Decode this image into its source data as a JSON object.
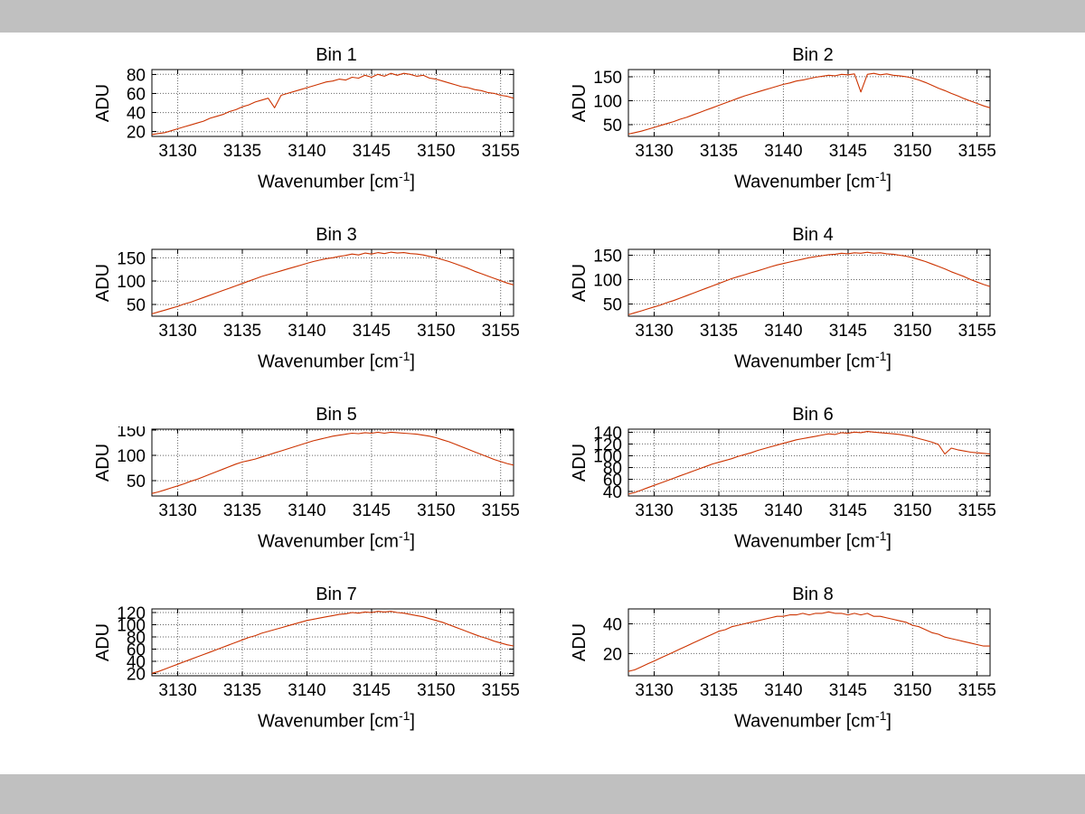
{
  "figure": {
    "background": "#ffffff",
    "chrome_color": "#c0c0c0",
    "line_color": "#cc3300",
    "grid_color": "#666666",
    "axis_color": "#000000"
  },
  "chart_data": [
    {
      "type": "line",
      "title": "Bin 1",
      "ylabel": "ADU",
      "xlabel": {
        "pre": "Wavenumber [cm",
        "sup": "-1",
        "post": "]"
      },
      "grid": true,
      "xlim": [
        3128,
        3156
      ],
      "ylim": [
        15,
        85
      ],
      "xticks": [
        3130,
        3135,
        3140,
        3145,
        3150,
        3155
      ],
      "yticks": [
        20,
        40,
        60,
        80
      ],
      "x_start": 3128,
      "x_step": 0.5,
      "values": [
        17,
        18,
        19,
        21,
        23,
        25,
        27,
        29,
        31,
        34,
        36,
        38,
        41,
        43,
        46,
        48,
        51,
        53,
        55,
        45,
        58,
        60,
        62,
        64,
        66,
        68,
        70,
        72,
        73,
        75,
        74,
        77,
        76,
        79,
        77,
        80,
        78,
        81,
        79,
        81,
        80,
        78,
        79,
        76,
        75,
        73,
        71,
        69,
        67,
        66,
        64,
        63,
        61,
        60,
        58,
        57,
        55
      ]
    },
    {
      "type": "line",
      "title": "Bin 2",
      "ylabel": "ADU",
      "xlabel": {
        "pre": "Wavenumber [cm",
        "sup": "-1",
        "post": "]"
      },
      "grid": true,
      "xlim": [
        3128,
        3156
      ],
      "ylim": [
        25,
        165
      ],
      "xticks": [
        3130,
        3135,
        3140,
        3145,
        3150,
        3155
      ],
      "yticks": [
        50,
        100,
        150
      ],
      "x_start": 3128,
      "x_step": 0.5,
      "values": [
        30,
        33,
        36,
        40,
        44,
        48,
        52,
        56,
        61,
        65,
        70,
        75,
        80,
        85,
        90,
        95,
        100,
        105,
        110,
        114,
        118,
        122,
        126,
        130,
        134,
        137,
        141,
        143,
        146,
        149,
        151,
        153,
        152,
        155,
        154,
        156,
        118,
        155,
        157,
        154,
        156,
        153,
        152,
        150,
        147,
        143,
        138,
        132,
        126,
        121,
        115,
        110,
        104,
        99,
        94,
        89,
        85
      ]
    },
    {
      "type": "line",
      "title": "Bin 3",
      "ylabel": "ADU",
      "xlabel": {
        "pre": "Wavenumber [cm",
        "sup": "-1",
        "post": "]"
      },
      "grid": true,
      "xlim": [
        3128,
        3156
      ],
      "ylim": [
        25,
        168
      ],
      "xticks": [
        3130,
        3135,
        3140,
        3145,
        3150,
        3155
      ],
      "yticks": [
        50,
        100,
        150
      ],
      "x_start": 3128,
      "x_step": 0.5,
      "values": [
        30,
        34,
        38,
        42,
        46,
        51,
        55,
        60,
        65,
        70,
        75,
        80,
        85,
        90,
        95,
        100,
        105,
        110,
        114,
        118,
        122,
        126,
        130,
        134,
        138,
        142,
        145,
        148,
        150,
        153,
        155,
        158,
        156,
        160,
        158,
        161,
        159,
        162,
        160,
        161,
        159,
        158,
        156,
        153,
        150,
        146,
        142,
        137,
        132,
        127,
        121,
        116,
        111,
        106,
        101,
        96,
        92
      ]
    },
    {
      "type": "line",
      "title": "Bin 4",
      "ylabel": "ADU",
      "xlabel": {
        "pre": "Wavenumber [cm",
        "sup": "-1",
        "post": "]"
      },
      "grid": true,
      "xlim": [
        3128,
        3156
      ],
      "ylim": [
        25,
        162
      ],
      "xticks": [
        3130,
        3135,
        3140,
        3145,
        3150,
        3155
      ],
      "yticks": [
        50,
        100,
        150
      ],
      "x_start": 3128,
      "x_step": 0.5,
      "values": [
        28,
        32,
        36,
        40,
        44,
        48,
        53,
        57,
        62,
        67,
        72,
        77,
        82,
        87,
        92,
        97,
        102,
        106,
        110,
        114,
        118,
        122,
        126,
        130,
        133,
        136,
        139,
        142,
        145,
        147,
        149,
        151,
        152,
        154,
        153,
        155,
        154,
        156,
        154,
        155,
        153,
        152,
        150,
        148,
        145,
        141,
        137,
        132,
        127,
        122,
        116,
        111,
        106,
        100,
        95,
        90,
        86
      ]
    },
    {
      "type": "line",
      "title": "Bin 5",
      "ylabel": "ADU",
      "xlabel": {
        "pre": "Wavenumber [cm",
        "sup": "-1",
        "post": "]"
      },
      "grid": true,
      "xlim": [
        3128,
        3156
      ],
      "ylim": [
        20,
        152
      ],
      "xticks": [
        3130,
        3135,
        3140,
        3145,
        3150,
        3155
      ],
      "yticks": [
        50,
        100,
        150
      ],
      "x_start": 3128,
      "x_step": 0.5,
      "values": [
        25,
        28,
        32,
        36,
        40,
        44,
        49,
        53,
        58,
        63,
        68,
        73,
        78,
        83,
        87,
        90,
        93,
        97,
        101,
        105,
        109,
        113,
        117,
        121,
        125,
        129,
        132,
        135,
        138,
        140,
        142,
        144,
        143,
        145,
        144,
        146,
        144,
        146,
        145,
        144,
        143,
        142,
        140,
        138,
        135,
        131,
        127,
        122,
        117,
        112,
        107,
        102,
        97,
        92,
        88,
        84,
        81
      ]
    },
    {
      "type": "line",
      "title": "Bin 6",
      "ylabel": "ADU",
      "xlabel": {
        "pre": "Wavenumber [cm",
        "sup": "-1",
        "post": "]"
      },
      "grid": true,
      "xlim": [
        3128,
        3156
      ],
      "ylim": [
        32,
        145
      ],
      "xticks": [
        3130,
        3135,
        3140,
        3145,
        3150,
        3155
      ],
      "yticks": [
        40,
        60,
        80,
        100,
        120,
        140
      ],
      "x_start": 3128,
      "x_step": 0.5,
      "values": [
        35,
        38,
        42,
        46,
        50,
        54,
        58,
        62,
        66,
        70,
        74,
        78,
        82,
        86,
        89,
        92,
        95,
        99,
        102,
        105,
        109,
        112,
        115,
        118,
        121,
        124,
        127,
        129,
        131,
        133,
        135,
        137,
        136,
        139,
        138,
        140,
        139,
        141,
        140,
        139,
        138,
        137,
        136,
        134,
        132,
        129,
        126,
        123,
        119,
        103,
        113,
        110,
        108,
        106,
        105,
        104,
        103
      ]
    },
    {
      "type": "line",
      "title": "Bin 7",
      "ylabel": "ADU",
      "xlabel": {
        "pre": "Wavenumber [cm",
        "sup": "-1",
        "post": "]"
      },
      "grid": true,
      "xlim": [
        3128,
        3156
      ],
      "ylim": [
        16,
        126
      ],
      "xticks": [
        3130,
        3135,
        3140,
        3145,
        3150,
        3155
      ],
      "yticks": [
        20,
        40,
        60,
        80,
        100,
        120
      ],
      "x_start": 3128,
      "x_step": 0.5,
      "values": [
        20,
        23,
        27,
        31,
        35,
        39,
        43,
        47,
        51,
        55,
        59,
        63,
        67,
        71,
        75,
        79,
        82,
        86,
        89,
        92,
        95,
        98,
        101,
        104,
        107,
        109,
        111,
        113,
        115,
        117,
        118,
        120,
        119,
        121,
        120,
        122,
        121,
        122,
        120,
        119,
        117,
        115,
        113,
        110,
        107,
        104,
        100,
        96,
        92,
        88,
        84,
        80,
        77,
        73,
        70,
        67,
        65
      ]
    },
    {
      "type": "line",
      "title": "Bin 8",
      "ylabel": "ADU",
      "xlabel": {
        "pre": "Wavenumber [cm",
        "sup": "-1",
        "post": "]"
      },
      "grid": true,
      "xlim": [
        3128,
        3156
      ],
      "ylim": [
        5,
        50
      ],
      "xticks": [
        3130,
        3135,
        3140,
        3145,
        3150,
        3155
      ],
      "yticks": [
        20,
        40
      ],
      "x_start": 3128,
      "x_step": 0.5,
      "values": [
        8,
        9,
        11,
        13,
        15,
        17,
        19,
        21,
        23,
        25,
        27,
        29,
        31,
        33,
        35,
        36,
        38,
        39,
        40,
        41,
        42,
        43,
        44,
        45,
        45,
        46,
        46,
        47,
        46,
        47,
        47,
        48,
        47,
        47,
        46,
        47,
        46,
        47,
        45,
        45,
        44,
        43,
        42,
        41,
        39,
        38,
        36,
        34,
        33,
        31,
        30,
        29,
        28,
        27,
        26,
        25,
        25
      ]
    }
  ]
}
